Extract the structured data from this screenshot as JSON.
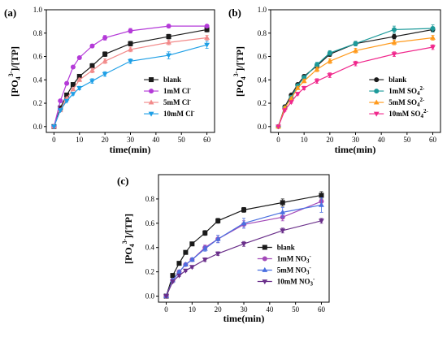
{
  "chart_data": [
    {
      "type": "line",
      "panel_label": "(a)",
      "xlabel": "time(min)",
      "ylabel": "[PO4^3-]/[TP]",
      "xlim": [
        -3,
        63
      ],
      "ylim": [
        -0.05,
        1.0
      ],
      "xticks": [
        0,
        10,
        20,
        30,
        40,
        50,
        60
      ],
      "yticks": [
        0.0,
        0.2,
        0.4,
        0.6,
        0.8,
        1.0
      ],
      "legend_position": "bottom-right",
      "x": [
        0,
        2.5,
        5,
        7.5,
        10,
        15,
        20,
        30,
        45,
        60
      ],
      "series": [
        {
          "name": "blank",
          "color": "#1a1a1a",
          "marker": "square",
          "values": [
            0,
            0.16,
            0.27,
            0.36,
            0.43,
            0.52,
            0.62,
            0.71,
            0.77,
            0.83
          ],
          "errors": [
            0,
            0.01,
            0.01,
            0.01,
            0.015,
            0.02,
            0.02,
            0.02,
            0.02,
            0.02
          ]
        },
        {
          "name": "1mM Cl",
          "color": "#b43ad8",
          "marker": "circle",
          "values": [
            0,
            0.22,
            0.37,
            0.51,
            0.59,
            0.69,
            0.76,
            0.82,
            0.86,
            0.86
          ],
          "errors": [
            0,
            0.01,
            0.01,
            0.01,
            0.01,
            0.015,
            0.02,
            0.02,
            0.015,
            0.01
          ]
        },
        {
          "name": "5mM Cl",
          "color": "#f28a8a",
          "marker": "triangle-up",
          "values": [
            0,
            0.14,
            0.24,
            0.32,
            0.4,
            0.48,
            0.56,
            0.66,
            0.72,
            0.76
          ],
          "errors": [
            0,
            0.01,
            0.01,
            0.01,
            0.015,
            0.02,
            0.02,
            0.02,
            0.02,
            0.02
          ]
        },
        {
          "name": "10mM Cl",
          "color": "#1e9fe6",
          "marker": "triangle-down",
          "values": [
            0,
            0.14,
            0.22,
            0.28,
            0.33,
            0.39,
            0.45,
            0.56,
            0.61,
            0.7
          ],
          "errors": [
            0,
            0.01,
            0.01,
            0.01,
            0.015,
            0.02,
            0.02,
            0.02,
            0.03,
            0.03
          ]
        }
      ]
    },
    {
      "type": "line",
      "panel_label": "(b)",
      "xlabel": "time(min)",
      "ylabel": "[PO4^3-]/[TP]",
      "xlim": [
        -3,
        63
      ],
      "ylim": [
        -0.05,
        1.0
      ],
      "xticks": [
        0,
        10,
        20,
        30,
        40,
        50,
        60
      ],
      "yticks": [
        0.0,
        0.2,
        0.4,
        0.6,
        0.8,
        1.0
      ],
      "legend_position": "bottom-right",
      "x": [
        0,
        2.5,
        5,
        7.5,
        10,
        15,
        20,
        30,
        45,
        60
      ],
      "series": [
        {
          "name": "blank",
          "color": "#1a1a1a",
          "marker": "circle",
          "values": [
            0,
            0.17,
            0.27,
            0.36,
            0.43,
            0.52,
            0.62,
            0.71,
            0.77,
            0.83
          ],
          "errors": [
            0,
            0.01,
            0.01,
            0.01,
            0.015,
            0.02,
            0.02,
            0.02,
            0.02,
            0.02
          ]
        },
        {
          "name": "1mM SO4",
          "color": "#1c9a9a",
          "marker": "circle",
          "values": [
            0,
            0.16,
            0.25,
            0.35,
            0.42,
            0.53,
            0.63,
            0.71,
            0.83,
            0.84
          ],
          "errors": [
            0,
            0.01,
            0.01,
            0.01,
            0.015,
            0.02,
            0.02,
            0.02,
            0.03,
            0.03
          ]
        },
        {
          "name": "5mM SO4",
          "color": "#ff9a1c",
          "marker": "triangle-up",
          "values": [
            0,
            0.16,
            0.24,
            0.33,
            0.39,
            0.49,
            0.56,
            0.65,
            0.72,
            0.76
          ],
          "errors": [
            0,
            0.01,
            0.01,
            0.01,
            0.015,
            0.02,
            0.02,
            0.02,
            0.02,
            0.02
          ]
        },
        {
          "name": "10mM SO4",
          "color": "#f0288c",
          "marker": "triangle-down",
          "values": [
            0,
            0.14,
            0.21,
            0.28,
            0.33,
            0.39,
            0.44,
            0.54,
            0.62,
            0.68
          ],
          "errors": [
            0,
            0.01,
            0.01,
            0.01,
            0.015,
            0.02,
            0.02,
            0.02,
            0.02,
            0.02
          ]
        }
      ]
    },
    {
      "type": "line",
      "panel_label": "(c)",
      "xlabel": "time(min)",
      "ylabel": "[PO4^3-]/[TP]",
      "xlim": [
        -3,
        63
      ],
      "ylim": [
        -0.05,
        1.0
      ],
      "xticks": [
        0,
        10,
        20,
        30,
        40,
        50,
        60
      ],
      "yticks": [
        0.0,
        0.2,
        0.4,
        0.6,
        0.8
      ],
      "legend_position": "bottom-right",
      "x": [
        0,
        2.5,
        5,
        7.5,
        10,
        15,
        20,
        30,
        45,
        60
      ],
      "series": [
        {
          "name": "blank",
          "color": "#1a1a1a",
          "marker": "square",
          "values": [
            0,
            0.17,
            0.27,
            0.36,
            0.43,
            0.52,
            0.62,
            0.71,
            0.77,
            0.83
          ],
          "errors": [
            0,
            0.01,
            0.01,
            0.01,
            0.015,
            0.02,
            0.02,
            0.02,
            0.03,
            0.03
          ]
        },
        {
          "name": "1mM NO3",
          "color": "#a349b8",
          "marker": "circle",
          "values": [
            0,
            0.13,
            0.2,
            0.26,
            0.3,
            0.4,
            0.47,
            0.59,
            0.65,
            0.78
          ],
          "errors": [
            0,
            0.01,
            0.01,
            0.01,
            0.015,
            0.02,
            0.03,
            0.03,
            0.03,
            0.03
          ]
        },
        {
          "name": "5mM NO3",
          "color": "#4a6fe0",
          "marker": "triangle-up",
          "values": [
            0,
            0.13,
            0.2,
            0.26,
            0.3,
            0.39,
            0.47,
            0.6,
            0.69,
            0.75
          ],
          "errors": [
            0,
            0.01,
            0.01,
            0.01,
            0.015,
            0.02,
            0.03,
            0.04,
            0.04,
            0.06
          ]
        },
        {
          "name": "10mM NO3",
          "color": "#6a2f8a",
          "marker": "triangle-down",
          "values": [
            0,
            0.12,
            0.17,
            0.21,
            0.24,
            0.3,
            0.35,
            0.43,
            0.54,
            0.62
          ],
          "errors": [
            0,
            0.01,
            0.01,
            0.01,
            0.01,
            0.015,
            0.015,
            0.02,
            0.02,
            0.02
          ]
        }
      ]
    }
  ]
}
